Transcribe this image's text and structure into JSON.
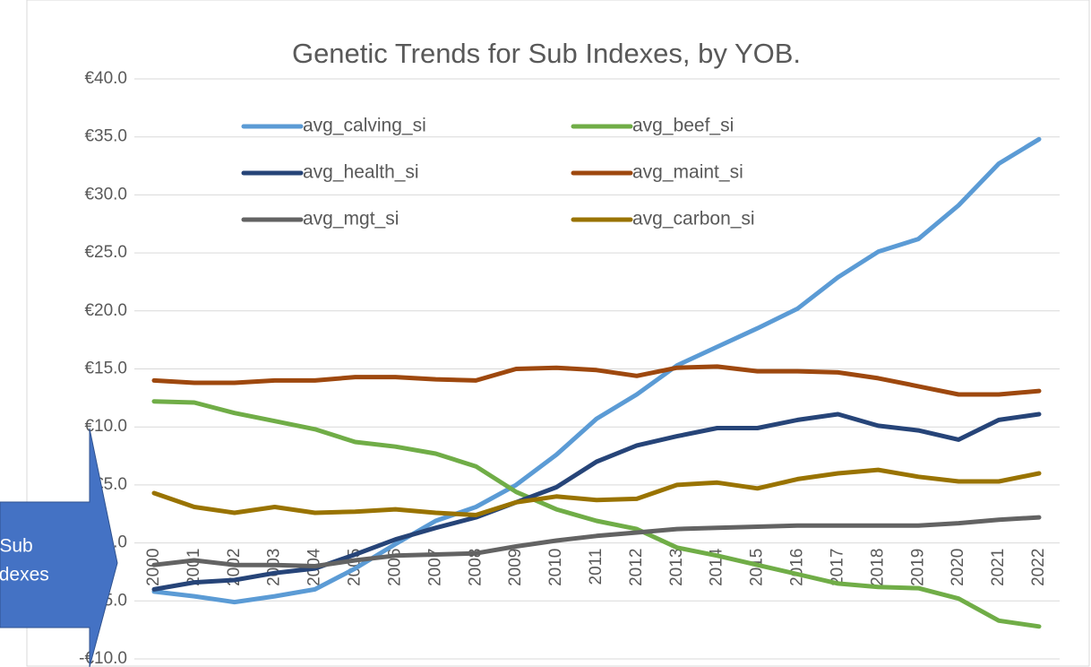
{
  "chart_data": {
    "type": "line",
    "title": "Genetic Trends for Sub Indexes, by YOB.",
    "callout": [
      "Sub",
      "Indexes"
    ],
    "categories": [
      "2000",
      "2001",
      "2002",
      "2003",
      "2004",
      "2005",
      "2006",
      "2007",
      "2008",
      "2009",
      "2010",
      "2011",
      "2012",
      "2013",
      "2014",
      "2015",
      "2016",
      "2017",
      "2018",
      "2019",
      "2020",
      "2021",
      "2022"
    ],
    "ylim": [
      -10,
      40
    ],
    "yticks": [
      {
        "value": 40,
        "label": "€40.0"
      },
      {
        "value": 35,
        "label": "€35.0"
      },
      {
        "value": 30,
        "label": "€30.0"
      },
      {
        "value": 25,
        "label": "€25.0"
      },
      {
        "value": 20,
        "label": "€20.0"
      },
      {
        "value": 15,
        "label": "€15.0"
      },
      {
        "value": 10,
        "label": "€10.0"
      },
      {
        "value": 5,
        "label": "€5.0"
      },
      {
        "value": 0,
        "label": "€0.0"
      },
      {
        "value": -5,
        "label": "-€5.0"
      },
      {
        "value": -10,
        "label": "-€10.0"
      }
    ],
    "grid": true,
    "series": [
      {
        "name": "avg_calving_si",
        "color": "#5b9bd5",
        "values": [
          -4.2,
          -4.6,
          -5.1,
          -4.6,
          -4.0,
          -2.2,
          -0.1,
          1.9,
          3.1,
          5.0,
          7.6,
          10.7,
          12.8,
          15.3,
          16.9,
          18.5,
          20.2,
          22.9,
          25.1,
          26.2,
          29.1,
          32.7,
          34.8
        ]
      },
      {
        "name": "avg_beef_si",
        "color": "#70ad47",
        "values": [
          12.2,
          12.1,
          11.2,
          10.5,
          9.8,
          8.7,
          8.3,
          7.7,
          6.6,
          4.4,
          2.9,
          1.9,
          1.2,
          -0.4,
          -1.1,
          -1.9,
          -2.7,
          -3.5,
          -3.8,
          -3.9,
          -4.8,
          -6.7,
          -7.2
        ]
      },
      {
        "name": "avg_health_si",
        "color": "#264478",
        "values": [
          -4.0,
          -3.4,
          -3.2,
          -2.6,
          -2.2,
          -1.0,
          0.3,
          1.3,
          2.2,
          3.5,
          4.8,
          7.0,
          8.4,
          9.2,
          9.9,
          9.9,
          10.6,
          11.1,
          10.1,
          9.7,
          8.9,
          10.6,
          11.1
        ]
      },
      {
        "name": "avg_maint_si",
        "color": "#9e480e",
        "values": [
          14.0,
          13.8,
          13.8,
          14.0,
          14.0,
          14.3,
          14.3,
          14.1,
          14.0,
          15.0,
          15.1,
          14.9,
          14.4,
          15.1,
          15.2,
          14.8,
          14.8,
          14.7,
          14.2,
          13.5,
          12.8,
          12.8,
          13.1
        ]
      },
      {
        "name": "avg_mgt_si",
        "color": "#636363",
        "values": [
          -1.9,
          -1.5,
          -1.9,
          -1.9,
          -2.0,
          -1.5,
          -1.1,
          -1.0,
          -0.9,
          -0.3,
          0.2,
          0.6,
          0.9,
          1.2,
          1.3,
          1.4,
          1.5,
          1.5,
          1.5,
          1.5,
          1.7,
          2.0,
          2.2
        ]
      },
      {
        "name": "avg_carbon_si",
        "color": "#997300",
        "values": [
          4.3,
          3.1,
          2.6,
          3.1,
          2.6,
          2.7,
          2.9,
          2.6,
          2.4,
          3.5,
          4.0,
          3.7,
          3.8,
          5.0,
          5.2,
          4.7,
          5.5,
          6.0,
          6.3,
          5.7,
          5.3,
          5.3,
          6.0
        ]
      }
    ]
  }
}
